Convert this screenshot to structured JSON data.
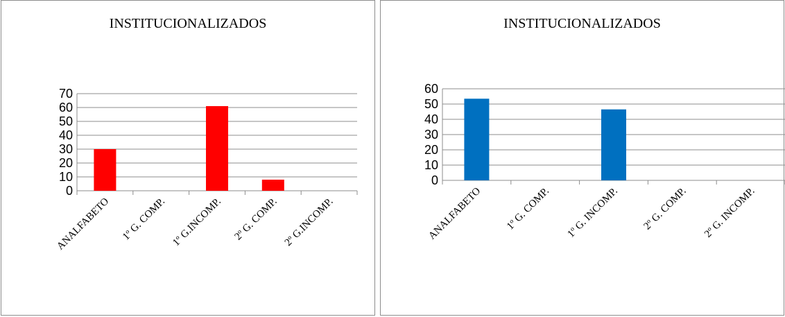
{
  "chart_data": [
    {
      "type": "bar",
      "title": "INSTITUCIONALIZADOS",
      "categories": [
        "ANALFABETO",
        "1º G. COMP.",
        "1º G.INCOMP.",
        "2º G. COMP.",
        "2º G.INCOMP."
      ],
      "values": [
        30,
        0,
        61,
        8,
        0
      ],
      "ylim": [
        0,
        70
      ],
      "ystep": 10,
      "color": "#ff0000",
      "grid": true
    },
    {
      "type": "bar",
      "title": "INSTITUCIONALIZADOS",
      "categories": [
        "ANALFABETO",
        "1º G. COMP.",
        "1º G. INCOMP.",
        "2º G. COMP.",
        "2º G. INCOMP."
      ],
      "values": [
        53.5,
        0,
        46.5,
        0,
        0
      ],
      "ylim": [
        0,
        60
      ],
      "ystep": 10,
      "color": "#0070c0",
      "grid": true
    }
  ]
}
